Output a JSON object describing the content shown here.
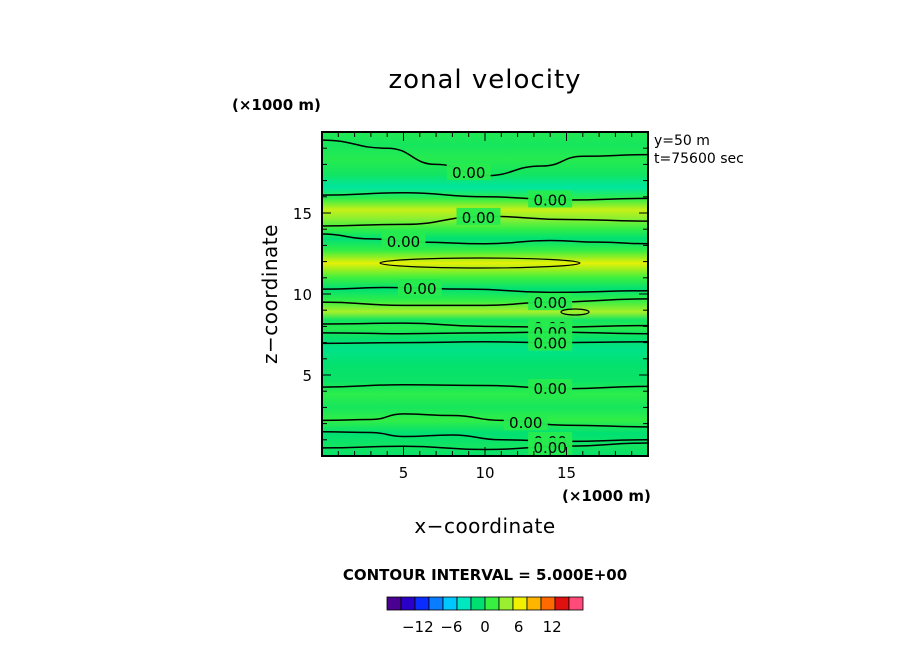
{
  "chart_data": {
    "type": "heatmap",
    "title": "zonal velocity",
    "xlabel": "x−coordinate",
    "ylabel": "z−coordinate",
    "x_unit": "(×1000 m)",
    "y_unit": "(×1000 m)",
    "xlim": [
      0,
      20
    ],
    "ylim": [
      0,
      20
    ],
    "x_ticks": [
      5,
      10,
      15
    ],
    "y_ticks": [
      5,
      10,
      15
    ],
    "x_tick_labels": [
      "5",
      "10",
      "15"
    ],
    "y_tick_labels": [
      "5",
      "10",
      "15"
    ],
    "annotations": [
      "y=50  m",
      "t=75600  sec"
    ],
    "contour_interval_text": "CONTOUR INTERVAL = 5.000E+00",
    "contour_label_text": "0.00",
    "colorbar": {
      "levels": [
        -15,
        -12.5,
        -10,
        -7.5,
        -5,
        -2.5,
        0,
        2.5,
        5,
        7.5,
        10,
        12.5,
        15
      ],
      "colors": [
        "#4a0090",
        "#2a00c8",
        "#0a2cff",
        "#0a7cff",
        "#00c8ff",
        "#00e8c0",
        "#00e070",
        "#38f040",
        "#9af030",
        "#f0f000",
        "#ffb400",
        "#ff6a00",
        "#e01010",
        "#ff4a7a"
      ],
      "tick_values": [
        -12,
        -6,
        0,
        6,
        12
      ],
      "tick_labels": [
        "−12",
        "−6",
        "0",
        "6",
        "12"
      ]
    },
    "z_bands": [
      {
        "z": 0.0,
        "u": -1.0
      },
      {
        "z": 0.6,
        "u": -0.5
      },
      {
        "z": 1.4,
        "u": -1.5
      },
      {
        "z": 2.2,
        "u": 1.0
      },
      {
        "z": 3.0,
        "u": -0.3
      },
      {
        "z": 3.8,
        "u": 0.8
      },
      {
        "z": 4.6,
        "u": -0.8
      },
      {
        "z": 5.6,
        "u": -1.2
      },
      {
        "z": 6.6,
        "u": -2.2
      },
      {
        "z": 7.3,
        "u": -1.0
      },
      {
        "z": 7.9,
        "u": 0.5
      },
      {
        "z": 8.4,
        "u": -0.5
      },
      {
        "z": 8.9,
        "u": 4.5
      },
      {
        "z": 9.6,
        "u": 1.0
      },
      {
        "z": 10.3,
        "u": -1.5
      },
      {
        "z": 11.0,
        "u": 1.5
      },
      {
        "z": 11.9,
        "u": 6.5
      },
      {
        "z": 12.7,
        "u": 1.0
      },
      {
        "z": 13.4,
        "u": -1.5
      },
      {
        "z": 14.0,
        "u": 1.0
      },
      {
        "z": 14.6,
        "u": 3.5
      },
      {
        "z": 15.2,
        "u": 5.5
      },
      {
        "z": 15.9,
        "u": 0.8
      },
      {
        "z": 16.6,
        "u": -3.0
      },
      {
        "z": 17.4,
        "u": -0.5
      },
      {
        "z": 18.3,
        "u": 0.5
      },
      {
        "z": 19.2,
        "u": -0.3
      },
      {
        "z": 20.0,
        "u": 0.3
      }
    ],
    "zero_contours": [
      {
        "points": [
          [
            0,
            19.5
          ],
          [
            4,
            19.0
          ],
          [
            7,
            18.0
          ],
          [
            10,
            17.3
          ],
          [
            13.5,
            17.9
          ],
          [
            16,
            18.5
          ],
          [
            20,
            18.6
          ]
        ],
        "label_x": 9.0
      },
      {
        "points": [
          [
            0,
            16.1
          ],
          [
            5,
            16.25
          ],
          [
            10,
            16.0
          ],
          [
            15,
            15.8
          ],
          [
            20,
            15.9
          ]
        ],
        "label_x": 14.0
      },
      {
        "points": [
          [
            0,
            14.2
          ],
          [
            5,
            14.3
          ],
          [
            10,
            14.8
          ],
          [
            15,
            14.6
          ],
          [
            20,
            14.5
          ]
        ],
        "label_x": 9.6
      },
      {
        "points": [
          [
            0,
            13.7
          ],
          [
            3,
            13.4
          ],
          [
            6,
            13.2
          ],
          [
            10,
            13.1
          ],
          [
            14,
            13.3
          ],
          [
            17,
            13.2
          ],
          [
            20,
            13.1
          ]
        ],
        "label_x": 5.0
      },
      {
        "points": [
          [
            0,
            10.3
          ],
          [
            4,
            10.4
          ],
          [
            9,
            10.3
          ],
          [
            14,
            10.1
          ],
          [
            20,
            10.2
          ]
        ],
        "label_x": 6.0
      },
      {
        "points": [
          [
            0,
            9.5
          ],
          [
            5,
            9.3
          ],
          [
            10,
            9.3
          ],
          [
            14,
            9.5
          ],
          [
            20,
            9.7
          ]
        ],
        "label_x": 14.0
      },
      {
        "points": [
          [
            0,
            8.15
          ],
          [
            5,
            8.2
          ],
          [
            10,
            8.0
          ],
          [
            14,
            7.95
          ],
          [
            20,
            8.05
          ]
        ],
        "label_x": 14.0
      },
      {
        "points": [
          [
            0,
            7.6
          ],
          [
            5,
            7.55
          ],
          [
            10,
            7.6
          ],
          [
            14,
            7.65
          ],
          [
            20,
            7.55
          ]
        ],
        "label_x": 14.0
      },
      {
        "points": [
          [
            0,
            6.95
          ],
          [
            5,
            7.0
          ],
          [
            10,
            7.05
          ],
          [
            14,
            7.0
          ],
          [
            20,
            7.05
          ]
        ],
        "label_x": 14.0
      },
      {
        "points": [
          [
            0,
            4.25
          ],
          [
            5,
            4.4
          ],
          [
            10,
            4.35
          ],
          [
            15,
            4.15
          ],
          [
            20,
            4.3
          ]
        ],
        "label_x": 14.0
      },
      {
        "points": [
          [
            0,
            2.2
          ],
          [
            3,
            2.25
          ],
          [
            5,
            2.6
          ],
          [
            8,
            2.5
          ],
          [
            11,
            2.2
          ],
          [
            15,
            1.9
          ],
          [
            20,
            1.8
          ]
        ],
        "label_x": 12.5
      },
      {
        "points": [
          [
            0,
            1.5
          ],
          [
            3,
            1.45
          ],
          [
            5,
            1.2
          ],
          [
            8,
            1.3
          ],
          [
            11,
            1.0
          ],
          [
            15,
            0.9
          ],
          [
            20,
            1.0
          ]
        ],
        "label_x": 14.0
      },
      {
        "points": [
          [
            0,
            0.5
          ],
          [
            5,
            0.6
          ],
          [
            10,
            0.4
          ],
          [
            15,
            0.6
          ],
          [
            20,
            0.8
          ]
        ],
        "label_x": 14.0
      }
    ]
  }
}
